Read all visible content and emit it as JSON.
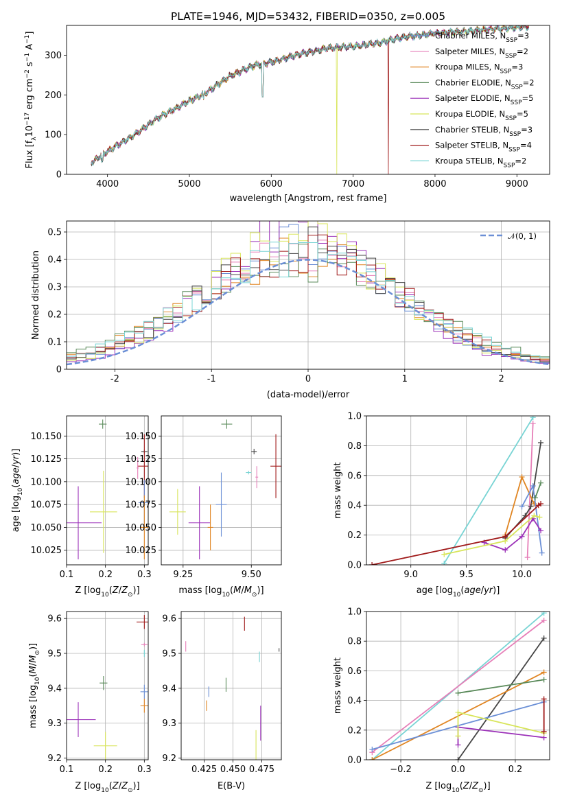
{
  "chart_data": [
    {
      "id": "spectrum",
      "type": "line",
      "title": "PLATE=1946, MJD=53432, FIBERID=0350, z=0.005",
      "xlabel": "wavelength [Angstrom, rest frame]",
      "ylabel": "Flux [f_λ 10^-17 erg cm^-2 s^-1 A^-1]",
      "xlim": [
        3500,
        9400
      ],
      "ylim": [
        0,
        375
      ],
      "xticks": [
        4000,
        5000,
        6000,
        7000,
        8000,
        9000
      ],
      "yticks": [
        0,
        100,
        200,
        300
      ],
      "grid": false,
      "legend_position": "right",
      "colors": {
        "CM": "#6b8fd6",
        "SM": "#e67fb8",
        "KM": "#e08522",
        "CE": "#5a8a5a",
        "SE": "#9b30b8",
        "KE": "#d8e55a",
        "CS": "#444444",
        "SS": "#a01a1a",
        "KS": "#78d4d4"
      },
      "series": [
        {
          "key": "CM",
          "label": "Chabrier MILES, N",
          "sub": "SSP",
          "val": "=3"
        },
        {
          "key": "SM",
          "label": "Salpeter MILES, N",
          "sub": "SSP",
          "val": "=2"
        },
        {
          "key": "KM",
          "label": "Kroupa MILES, N",
          "sub": "SSP",
          "val": "=3"
        },
        {
          "key": "CE",
          "label": "Chabrier ELODIE, N",
          "sub": "SSP",
          "val": "=2"
        },
        {
          "key": "SE",
          "label": "Salpeter ELODIE, N",
          "sub": "SSP",
          "val": "=5"
        },
        {
          "key": "KE",
          "label": "Kroupa ELODIE, N",
          "sub": "SSP",
          "val": "=5"
        },
        {
          "key": "CS",
          "label": "Chabrier STELIB, N",
          "sub": "SSP",
          "val": "=3"
        },
        {
          "key": "SS",
          "label": "Salpeter STELIB, N",
          "sub": "SSP",
          "val": "=4"
        },
        {
          "key": "KS",
          "label": "Kroupa STELIB, N",
          "sub": "SSP",
          "val": "=2"
        }
      ],
      "continuum": [
        [
          3800,
          30
        ],
        [
          4000,
          58
        ],
        [
          4300,
          95
        ],
        [
          4600,
          140
        ],
        [
          5000,
          185
        ],
        [
          5200,
          205
        ],
        [
          5500,
          248
        ],
        [
          5800,
          275
        ],
        [
          6000,
          282
        ],
        [
          6300,
          300
        ],
        [
          6700,
          318
        ],
        [
          7000,
          322
        ],
        [
          7300,
          330
        ],
        [
          7600,
          345
        ],
        [
          8000,
          355
        ],
        [
          8500,
          362
        ],
        [
          9000,
          370
        ],
        [
          9150,
          372
        ]
      ],
      "features": {
        "na_d": [
          5895,
          195
        ],
        "drops": {
          "KE": [
            6800,
            0
          ],
          "SS": [
            7430,
            0
          ]
        }
      }
    },
    {
      "id": "residuals",
      "type": "step",
      "xlabel": "(data-model)/error",
      "ylabel": "Normed distribution",
      "xlim": [
        -2.5,
        2.5
      ],
      "ylim": [
        0,
        0.54
      ],
      "xticks": [
        -2,
        -1,
        0,
        1,
        2
      ],
      "yticks": [
        0.0,
        0.1,
        0.2,
        0.3,
        0.4,
        0.5
      ],
      "grid": true,
      "legend_position": "top-right",
      "normal_label": "𝒩(0, 1)",
      "normal_color": "#6b8fd6",
      "bin_edges_start": -2.5,
      "bin_width": 0.1
    },
    {
      "id": "age_vs_Z",
      "type": "errorbar",
      "xlabel": "Z [log10(Z/Z⊙)]",
      "ylabel": "age [log10(age/yr)]",
      "xlim": [
        0.1,
        0.31
      ],
      "ylim": [
        10.009,
        10.172
      ],
      "xticks": [
        0.1,
        0.2,
        0.3
      ],
      "xtick_labels": [
        "0.1",
        "0.2",
        "0.3"
      ],
      "yticks": [
        10.025,
        10.05,
        10.075,
        10.1,
        10.125,
        10.15
      ],
      "ytick_labels": [
        "10.025",
        "10.050",
        "10.075",
        "10.100",
        "10.125",
        "10.150"
      ],
      "grid": true,
      "points": [
        {
          "key": "CE",
          "x": 0.193,
          "y": 10.163,
          "xerr": 0.01,
          "yerr": 0.005
        },
        {
          "key": "CS",
          "x": 0.3,
          "y": 10.133,
          "xerr": 0.008,
          "yerr": 0.002
        },
        {
          "key": "SS",
          "x": 0.3,
          "y": 10.117,
          "xerr": 0.018,
          "yerr": 0.035
        },
        {
          "key": "SM",
          "x": 0.283,
          "y": 10.115,
          "xerr": 0.003,
          "yerr": 0.012
        },
        {
          "key": "KE",
          "x": 0.195,
          "y": 10.067,
          "xerr": 0.035,
          "yerr": 0.045
        },
        {
          "key": "SE",
          "x": 0.13,
          "y": 10.055,
          "xerr": 0.06,
          "yerr": 0.04
        },
        {
          "key": "CM",
          "x": 0.3,
          "y": 10.077,
          "xerr": 0.015,
          "yerr": 0.025
        },
        {
          "key": "KM",
          "x": 0.3,
          "y": 10.05,
          "xerr": 0.01,
          "yerr": 0.035
        }
      ]
    },
    {
      "id": "age_vs_mass",
      "type": "errorbar",
      "xlabel": "mass [log10(M/M⊙)]",
      "ylabel": "",
      "xlim": [
        9.17,
        9.61
      ],
      "ylim": [
        10.009,
        10.172
      ],
      "xticks": [
        9.25,
        9.5
      ],
      "xtick_labels": [
        "9.25",
        "9.50"
      ],
      "yticks": [
        10.025,
        10.05,
        10.075,
        10.1,
        10.125,
        10.15
      ],
      "ytick_labels": [
        "10.025",
        "10.050",
        "10.075",
        "10.100",
        "10.125",
        "10.150"
      ],
      "grid": true,
      "points": [
        {
          "key": "CE",
          "x": 9.41,
          "y": 10.163,
          "xerr": 0.02,
          "yerr": 0.005
        },
        {
          "key": "CS",
          "x": 9.51,
          "y": 10.133,
          "xerr": 0.01,
          "yerr": 0.003
        },
        {
          "key": "SS",
          "x": 9.59,
          "y": 10.117,
          "xerr": 0.02,
          "yerr": 0.035
        },
        {
          "key": "KS",
          "x": 9.49,
          "y": 10.11,
          "xerr": 0.01,
          "yerr": 0.002
        },
        {
          "key": "SM",
          "x": 9.52,
          "y": 10.105,
          "xerr": 0.005,
          "yerr": 0.012
        },
        {
          "key": "KE",
          "x": 9.23,
          "y": 10.067,
          "xerr": 0.03,
          "yerr": 0.025
        },
        {
          "key": "SE",
          "x": 9.31,
          "y": 10.055,
          "xerr": 0.04,
          "yerr": 0.04
        },
        {
          "key": "KM",
          "x": 9.35,
          "y": 10.05,
          "xerr": 0.01,
          "yerr": 0.025
        },
        {
          "key": "CM",
          "x": 9.39,
          "y": 10.075,
          "xerr": 0.02,
          "yerr": 0.035
        }
      ]
    },
    {
      "id": "massweight_vs_age",
      "type": "line",
      "xlabel": "age  [log10(age/yr)]",
      "ylabel": "mass weight",
      "xlim": [
        8.6,
        10.25
      ],
      "ylim": [
        0,
        1
      ],
      "xticks": [
        9.0,
        9.5,
        10.0
      ],
      "xtick_labels": [
        "9.0",
        "9.5",
        "10.0"
      ],
      "yticks": [
        0,
        0.2,
        0.4,
        0.6,
        0.8,
        1.0
      ],
      "ytick_labels": [
        "0.0",
        "0.2",
        "0.4",
        "0.6",
        "0.8",
        "1.0"
      ],
      "grid": true,
      "series": [
        {
          "key": "KS",
          "points": [
            [
              9.3,
              0.01
            ],
            [
              10.1,
              0.99
            ]
          ]
        },
        {
          "key": "SM",
          "points": [
            [
              10.05,
              0.05
            ],
            [
              10.1,
              0.95
            ]
          ]
        },
        {
          "key": "CS",
          "points": [
            [
              9.85,
              0.18
            ],
            [
              10.03,
              0.33
            ],
            [
              10.08,
              0.39
            ],
            [
              10.17,
              0.82
            ]
          ]
        },
        {
          "key": "KM",
          "points": [
            [
              9.85,
              0.2
            ],
            [
              10.0,
              0.59
            ],
            [
              10.11,
              0.41
            ]
          ]
        },
        {
          "key": "CM",
          "points": [
            [
              10.0,
              0.39
            ],
            [
              10.1,
              0.53
            ],
            [
              10.18,
              0.08
            ]
          ]
        },
        {
          "key": "CE",
          "points": [
            [
              10.12,
              0.45
            ],
            [
              10.17,
              0.55
            ]
          ]
        },
        {
          "key": "SE",
          "points": [
            [
              9.66,
              0.15
            ],
            [
              9.85,
              0.1
            ],
            [
              10.0,
              0.19
            ],
            [
              10.1,
              0.31
            ],
            [
              10.17,
              0.23
            ]
          ]
        },
        {
          "key": "KE",
          "points": [
            [
              9.3,
              0.07
            ],
            [
              9.85,
              0.16
            ],
            [
              10.11,
              0.33
            ],
            [
              10.16,
              0.32
            ]
          ]
        },
        {
          "key": "SS",
          "points": [
            [
              8.65,
              0.0
            ],
            [
              9.85,
              0.19
            ],
            [
              10.15,
              0.4
            ],
            [
              10.17,
              0.41
            ]
          ]
        }
      ]
    },
    {
      "id": "mass_vs_Z",
      "type": "errorbar",
      "xlabel": "Z [log10(Z/Z⊙)]",
      "ylabel": "mass [log10(M/M⊙)]",
      "xlim": [
        0.1,
        0.31
      ],
      "ylim": [
        9.195,
        9.62
      ],
      "xticks": [
        0.1,
        0.2,
        0.3
      ],
      "xtick_labels": [
        "0.1",
        "0.2",
        "0.3"
      ],
      "yticks": [
        9.2,
        9.3,
        9.4,
        9.5,
        9.6
      ],
      "ytick_labels": [
        "9.2",
        "9.3",
        "9.4",
        "9.5",
        "9.6"
      ],
      "grid": true,
      "points": [
        {
          "key": "SS",
          "x": 0.3,
          "y": 9.59,
          "xerr": 0.02,
          "yerr": 0.02
        },
        {
          "key": "SM",
          "x": 0.3,
          "y": 9.525,
          "xerr": 0.008,
          "yerr": 0.005
        },
        {
          "key": "KS",
          "x": 0.3,
          "y": 9.5,
          "xerr": 0.002,
          "yerr": 0.01
        },
        {
          "key": "CE",
          "x": 0.195,
          "y": 9.415,
          "xerr": 0.01,
          "yerr": 0.02
        },
        {
          "key": "CM",
          "x": 0.3,
          "y": 9.39,
          "xerr": 0.01,
          "yerr": 0.02
        },
        {
          "key": "KM",
          "x": 0.3,
          "y": 9.35,
          "xerr": 0.01,
          "yerr": 0.02
        },
        {
          "key": "SE",
          "x": 0.13,
          "y": 9.31,
          "xerr": 0.045,
          "yerr": 0.05
        },
        {
          "key": "KE",
          "x": 0.2,
          "y": 9.235,
          "xerr": 0.03,
          "yerr": 0.04
        }
      ]
    },
    {
      "id": "mass_vs_ebv",
      "type": "errorbar",
      "xlabel": "E(B-V)",
      "ylabel": "",
      "xlim": [
        0.405,
        0.492
      ],
      "ylim": [
        9.195,
        9.62
      ],
      "xticks": [
        0.425,
        0.45,
        0.475
      ],
      "xtick_labels": [
        "0.425",
        "0.450",
        "0.475"
      ],
      "yticks": [
        9.2,
        9.3,
        9.4,
        9.5,
        9.6
      ],
      "ytick_labels": [
        "9.2",
        "9.3",
        "9.4",
        "9.5",
        "9.6"
      ],
      "grid": true,
      "points": [
        {
          "key": "SS",
          "x": 0.46,
          "y": 9.585,
          "xerr": 0,
          "yerr": 0.02
        },
        {
          "key": "SM",
          "x": 0.409,
          "y": 9.52,
          "xerr": 0,
          "yerr": 0.015
        },
        {
          "key": "CS",
          "x": 0.49,
          "y": 9.51,
          "xerr": 0,
          "yerr": 0.005
        },
        {
          "key": "KS",
          "x": 0.473,
          "y": 9.49,
          "xerr": 0,
          "yerr": 0.015
        },
        {
          "key": "CE",
          "x": 0.444,
          "y": 9.41,
          "xerr": 0,
          "yerr": 0.02
        },
        {
          "key": "CM",
          "x": 0.429,
          "y": 9.39,
          "xerr": 0,
          "yerr": 0.015
        },
        {
          "key": "KM",
          "x": 0.427,
          "y": 9.35,
          "xerr": 0,
          "yerr": 0.015
        },
        {
          "key": "SE",
          "x": 0.474,
          "y": 9.3,
          "xerr": 0,
          "yerr": 0.05
        },
        {
          "key": "KE",
          "x": 0.47,
          "y": 9.235,
          "xerr": 0,
          "yerr": 0.045
        }
      ]
    },
    {
      "id": "massweight_vs_Z",
      "type": "line",
      "xlabel": "Z [log10(Z/Z⊙)]",
      "ylabel": "mass weight",
      "xlim": [
        -0.32,
        0.32
      ],
      "ylim": [
        0,
        1
      ],
      "xticks": [
        -0.2,
        0.0,
        0.2
      ],
      "xtick_labels": [
        "−0.2",
        "0.0",
        "0.2"
      ],
      "yticks": [
        0,
        0.2,
        0.4,
        0.6,
        0.8,
        1.0
      ],
      "ytick_labels": [
        "0.0",
        "0.2",
        "0.4",
        "0.6",
        "0.8",
        "1.0"
      ],
      "grid": true,
      "series": [
        {
          "key": "KS",
          "points": [
            [
              -0.3,
              0.0
            ],
            [
              0.3,
              0.99
            ]
          ]
        },
        {
          "key": "SM",
          "points": [
            [
              -0.3,
              0.05
            ],
            [
              0.3,
              0.94
            ]
          ]
        },
        {
          "key": "CS",
          "points": [
            [
              0.0,
              0.0
            ],
            [
              0.3,
              0.82
            ]
          ]
        },
        {
          "key": "KM",
          "points": [
            [
              -0.3,
              0.0
            ],
            [
              0.3,
              0.59
            ]
          ]
        },
        {
          "key": "CE",
          "points": [
            [
              0.0,
              0.45
            ],
            [
              0.3,
              0.54
            ]
          ]
        },
        {
          "key": "CM",
          "points": [
            [
              -0.3,
              0.07
            ],
            [
              0.3,
              0.39
            ]
          ]
        },
        {
          "key": "SE",
          "points": [
            [
              0.0,
              0.1
            ],
            [
              0.0,
              0.22
            ],
            [
              0.3,
              0.15
            ]
          ]
        },
        {
          "key": "KE",
          "points": [
            [
              0.0,
              0.16
            ],
            [
              0.0,
              0.32
            ],
            [
              0.3,
              0.18
            ]
          ]
        },
        {
          "key": "SS",
          "points": [
            [
              0.3,
              0.19
            ],
            [
              0.3,
              0.41
            ]
          ]
        }
      ]
    }
  ]
}
